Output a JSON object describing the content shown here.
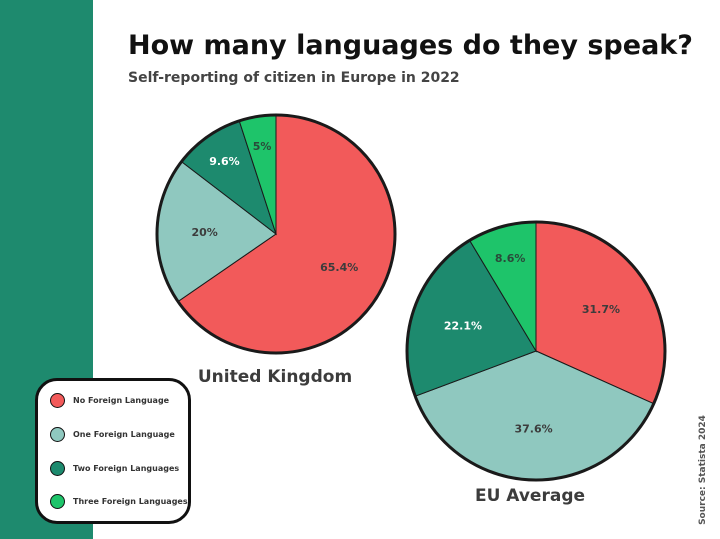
{
  "page": {
    "title": "How many languages do they speak?",
    "subtitle": "Self-reporting of citizen in Europe in 2022",
    "source": "Source: Statista 2024"
  },
  "legend": [
    {
      "label": "No Foreign Language",
      "color": "#f25a5a"
    },
    {
      "label": "One Foreign Language",
      "color": "#8fc8bf"
    },
    {
      "label": "Two Foreign Languages",
      "color": "#1d8a6e"
    },
    {
      "label": "Three Foreign Languages",
      "color": "#1ec46a"
    }
  ],
  "chart_data": [
    {
      "type": "pie",
      "title": "United Kingdom",
      "categories": [
        "No Foreign Language",
        "One Foreign Language",
        "Two Foreign Languages",
        "Three Foreign Languages"
      ],
      "values": [
        65.4,
        20,
        9.6,
        5
      ],
      "value_labels": [
        "65.4%",
        "20%",
        "9.6%",
        "5%"
      ],
      "colors": [
        "#f25a5a",
        "#8fc8bf",
        "#1d8a6e",
        "#1ec46a"
      ]
    },
    {
      "type": "pie",
      "title": "EU Average",
      "categories": [
        "No Foreign Language",
        "One Foreign Language",
        "Two Foreign Languages",
        "Three Foreign Languages"
      ],
      "values": [
        31.7,
        37.6,
        22.1,
        8.6
      ],
      "value_labels": [
        "31.7%",
        "37.6%",
        "22.1%",
        "8.6%"
      ],
      "colors": [
        "#f25a5a",
        "#8fc8bf",
        "#1d8a6e",
        "#1ec46a"
      ]
    }
  ]
}
